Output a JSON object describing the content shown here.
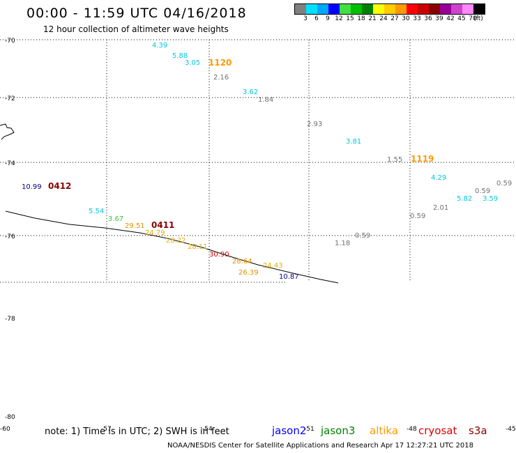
{
  "title": "00:00 - 11:59 UTC 04/16/2018",
  "subtitle": "12 hour collection of altimeter wave heights",
  "legend": {
    "colors": [
      "#808080",
      "#00e0ff",
      "#00a8ff",
      "#0000ff",
      "#40e040",
      "#00c000",
      "#008000",
      "#ffff00",
      "#ffcc00",
      "#ff9900",
      "#ff0000",
      "#cc0000",
      "#880000",
      "#990099",
      "#cc44cc",
      "#ff88ff",
      "#000000"
    ],
    "labels": [
      "3",
      "6",
      "9",
      "12",
      "15",
      "18",
      "21",
      "24",
      "27",
      "30",
      "33",
      "36",
      "39",
      "42",
      "45",
      "70",
      "(ft)"
    ]
  },
  "lat_labels": [
    "-70",
    "-72",
    "-74",
    "-76",
    "-78",
    "-80"
  ],
  "lon_labels": [
    "-60",
    "-57",
    "-54",
    "-51",
    "-48",
    "-45"
  ],
  "wave_points": [
    {
      "t": "4.39",
      "c": "#00c8e0"
    },
    {
      "t": "5.88",
      "c": "#00c8e0"
    },
    {
      "t": "3.05",
      "c": "#00c8e0"
    },
    {
      "t": "2.16",
      "c": "#707070"
    },
    {
      "t": "3.62",
      "c": "#00c8e0"
    },
    {
      "t": "1.84",
      "c": "#707070"
    },
    {
      "t": "2.93",
      "c": "#707070"
    },
    {
      "t": "3.81",
      "c": "#00c8e0"
    },
    {
      "t": "1.55",
      "c": "#707070"
    },
    {
      "t": "4.29",
      "c": "#00c8e0"
    },
    {
      "t": "0.59",
      "c": "#707070"
    },
    {
      "t": "0.59",
      "c": "#707070"
    },
    {
      "t": "5.82",
      "c": "#00c8e0"
    },
    {
      "t": "3.59",
      "c": "#00c8e0"
    },
    {
      "t": "2.01",
      "c": "#707070"
    },
    {
      "t": "0.59",
      "c": "#707070"
    },
    {
      "t": "0.59",
      "c": "#707070"
    },
    {
      "t": "1.18",
      "c": "#707070"
    },
    {
      "t": "10.99",
      "c": "#000080"
    },
    {
      "t": "5.54",
      "c": "#00c8e0"
    },
    {
      "t": "3.67",
      "c": "#40c040"
    },
    {
      "t": "29.51",
      "c": "#e09000"
    },
    {
      "t": "24.79",
      "c": "#e0b000"
    },
    {
      "t": "28.22",
      "c": "#e0b000"
    },
    {
      "t": "28.11",
      "c": "#e0b000"
    },
    {
      "t": "30.90",
      "c": "#cc0000"
    },
    {
      "t": "28.64",
      "c": "#e09000"
    },
    {
      "t": "24.43",
      "c": "#e0b000"
    },
    {
      "t": "26.39",
      "c": "#e09000"
    },
    {
      "t": "10.87",
      "c": "#000080"
    }
  ],
  "orbit_labels": [
    {
      "t": "1120",
      "c": "#ff9900"
    },
    {
      "t": "1119",
      "c": "#ff9900"
    },
    {
      "t": "0412",
      "c": "#880000"
    },
    {
      "t": "0411",
      "c": "#880000"
    }
  ],
  "note": "note: 1) Time is in UTC; 2) SWH is in feet",
  "satellites": [
    {
      "name": "jason2",
      "color": "#0000ff"
    },
    {
      "name": "jason3",
      "color": "#008000"
    },
    {
      "name": "altika",
      "color": "#ff9900"
    },
    {
      "name": "cryosat",
      "color": "#dd0000"
    },
    {
      "name": "s3a",
      "color": "#880000"
    }
  ],
  "credit": "NOAA/NESDIS Center for Satellite Applications and Research    Apr 17 12:27:21 UTC 2018"
}
